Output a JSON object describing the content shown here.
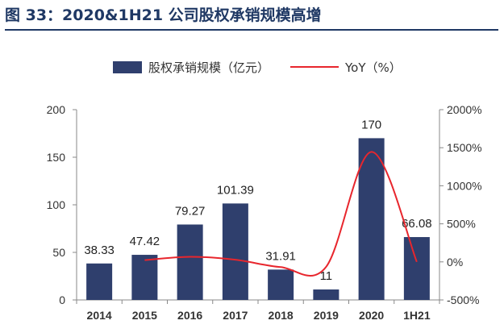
{
  "figure": {
    "title": "图 33：2020&1H21 公司股权承销规模高增"
  },
  "chart_data": {
    "type": "bar",
    "categories": [
      "2014",
      "2015",
      "2016",
      "2017",
      "2018",
      "2019",
      "2020",
      "1H21"
    ],
    "series": [
      {
        "name": "股权承销规模（亿元）",
        "type": "bar",
        "axis": "left",
        "color": "#2f3f6d",
        "values": [
          38.33,
          47.42,
          79.27,
          101.39,
          31.91,
          11,
          170,
          66.08
        ],
        "labels": [
          "38.33",
          "47.42",
          "79.27",
          "101.39",
          "31.91",
          "11",
          "170",
          "66.08"
        ]
      },
      {
        "name": "YoY（%）",
        "type": "line",
        "axis": "right",
        "color": "#e8262d",
        "values": [
          null,
          23.7,
          67.2,
          27.9,
          -68.5,
          -65.5,
          1445.5,
          0
        ]
      }
    ],
    "ylim": [
      0,
      200
    ],
    "y_ticks": [
      0,
      50,
      100,
      150,
      200
    ],
    "y2lim": [
      -500,
      2000
    ],
    "y2_ticks": [
      "-500%",
      "0%",
      "500%",
      "1000%",
      "1500%",
      "2000%"
    ],
    "y2_tick_values": [
      -500,
      0,
      500,
      1000,
      1500,
      2000
    ],
    "legend": "top",
    "grid": false
  }
}
